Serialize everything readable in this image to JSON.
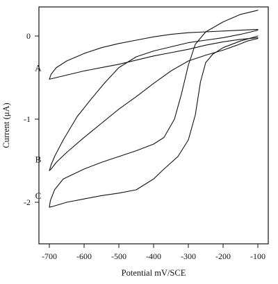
{
  "chart_data": {
    "type": "line",
    "title": "",
    "xlabel": "Potential mV/SCE",
    "ylabel": "Current (μA)",
    "xlim": [
      -730,
      -70
    ],
    "ylim": [
      -2.5,
      0.35
    ],
    "x_ticks": [
      -700,
      -600,
      -500,
      -400,
      -300,
      -200,
      -100
    ],
    "x_tick_labels": [
      "-700",
      "-600",
      "-500",
      "-400",
      "-300",
      "-200",
      "-100"
    ],
    "y_ticks": [
      0,
      -1,
      -2
    ],
    "y_tick_labels": [
      "0",
      "-1",
      "-2"
    ],
    "grid": false,
    "legend": "none",
    "series": [
      {
        "name": "A",
        "points": [
          [
            -100,
            -0.02
          ],
          [
            -150,
            -0.04
          ],
          [
            -200,
            -0.07
          ],
          [
            -250,
            -0.11
          ],
          [
            -300,
            -0.16
          ],
          [
            -350,
            -0.2
          ],
          [
            -400,
            -0.24
          ],
          [
            -450,
            -0.29
          ],
          [
            -500,
            -0.34
          ],
          [
            -550,
            -0.38
          ],
          [
            -600,
            -0.42
          ],
          [
            -650,
            -0.47
          ],
          [
            -700,
            -0.52
          ],
          [
            -695,
            -0.46
          ],
          [
            -680,
            -0.38
          ],
          [
            -650,
            -0.3
          ],
          [
            -600,
            -0.21
          ],
          [
            -550,
            -0.14
          ],
          [
            -500,
            -0.09
          ],
          [
            -450,
            -0.05
          ],
          [
            -400,
            -0.01
          ],
          [
            -350,
            0.02
          ],
          [
            -300,
            0.04
          ],
          [
            -250,
            0.05
          ],
          [
            -200,
            0.06
          ],
          [
            -150,
            0.07
          ],
          [
            -100,
            0.08
          ]
        ]
      },
      {
        "name": "B",
        "points": [
          [
            -100,
            -0.03
          ],
          [
            -130,
            -0.06
          ],
          [
            -160,
            -0.11
          ],
          [
            -200,
            -0.17
          ],
          [
            -250,
            -0.23
          ],
          [
            -300,
            -0.3
          ],
          [
            -350,
            -0.42
          ],
          [
            -400,
            -0.57
          ],
          [
            -450,
            -0.73
          ],
          [
            -500,
            -0.88
          ],
          [
            -550,
            -1.05
          ],
          [
            -600,
            -1.22
          ],
          [
            -650,
            -1.4
          ],
          [
            -680,
            -1.52
          ],
          [
            -695,
            -1.6
          ],
          [
            -700,
            -1.62
          ],
          [
            -695,
            -1.55
          ],
          [
            -685,
            -1.45
          ],
          [
            -660,
            -1.25
          ],
          [
            -620,
            -0.97
          ],
          [
            -580,
            -0.76
          ],
          [
            -540,
            -0.56
          ],
          [
            -500,
            -0.38
          ],
          [
            -450,
            -0.25
          ],
          [
            -400,
            -0.18
          ],
          [
            -350,
            -0.13
          ],
          [
            -300,
            -0.08
          ],
          [
            -250,
            -0.05
          ],
          [
            -200,
            -0.02
          ],
          [
            -150,
            0.02
          ],
          [
            -100,
            0.07
          ]
        ]
      },
      {
        "name": "C",
        "points": [
          [
            -100,
            0.0
          ],
          [
            -150,
            -0.06
          ],
          [
            -200,
            -0.14
          ],
          [
            -230,
            -0.22
          ],
          [
            -250,
            -0.32
          ],
          [
            -265,
            -0.55
          ],
          [
            -280,
            -0.95
          ],
          [
            -300,
            -1.25
          ],
          [
            -330,
            -1.45
          ],
          [
            -370,
            -1.6
          ],
          [
            -400,
            -1.72
          ],
          [
            -450,
            -1.85
          ],
          [
            -500,
            -1.89
          ],
          [
            -550,
            -1.92
          ],
          [
            -600,
            -1.96
          ],
          [
            -650,
            -2.0
          ],
          [
            -690,
            -2.05
          ],
          [
            -700,
            -2.06
          ],
          [
            -697,
            -1.98
          ],
          [
            -685,
            -1.85
          ],
          [
            -660,
            -1.72
          ],
          [
            -600,
            -1.6
          ],
          [
            -550,
            -1.52
          ],
          [
            -500,
            -1.45
          ],
          [
            -450,
            -1.38
          ],
          [
            -400,
            -1.3
          ],
          [
            -370,
            -1.22
          ],
          [
            -340,
            -1.0
          ],
          [
            -320,
            -0.7
          ],
          [
            -300,
            -0.35
          ],
          [
            -280,
            -0.1
          ],
          [
            -250,
            0.05
          ],
          [
            -200,
            0.17
          ],
          [
            -150,
            0.26
          ],
          [
            -100,
            0.31
          ]
        ]
      }
    ]
  }
}
